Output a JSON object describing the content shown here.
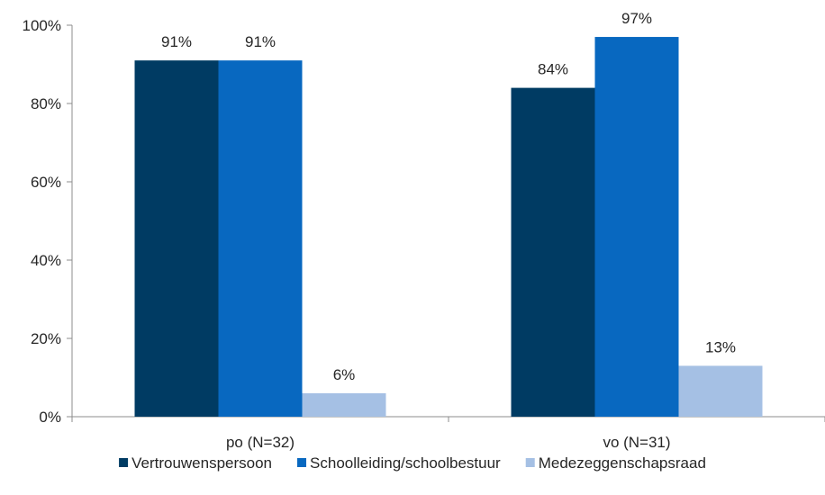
{
  "chart_data": {
    "type": "bar",
    "categories": [
      "po (N=32)",
      "vo (N=31)"
    ],
    "series": [
      {
        "name": "Vertrouwenspersoon",
        "values": [
          91,
          84
        ],
        "labels": [
          "91%",
          "84%"
        ],
        "color": "#003b63"
      },
      {
        "name": "Schoolleiding/schoolbestuur",
        "values": [
          91,
          97
        ],
        "labels": [
          "91%",
          "97%"
        ],
        "color": "#0868c0"
      },
      {
        "name": "Medezeggenschapsraad",
        "values": [
          6,
          13
        ],
        "labels": [
          "6%",
          "13%"
        ],
        "color": "#a5c0e4"
      }
    ],
    "ylim": [
      0,
      100
    ],
    "yticks": [
      {
        "value": 0,
        "label": "0%"
      },
      {
        "value": 20,
        "label": "20%"
      },
      {
        "value": 40,
        "label": "40%"
      },
      {
        "value": 60,
        "label": "60%"
      },
      {
        "value": 80,
        "label": "80%"
      },
      {
        "value": 100,
        "label": "100%"
      }
    ],
    "grid": false,
    "legend_position": "bottom",
    "axis_color": "#8c8c8c"
  }
}
